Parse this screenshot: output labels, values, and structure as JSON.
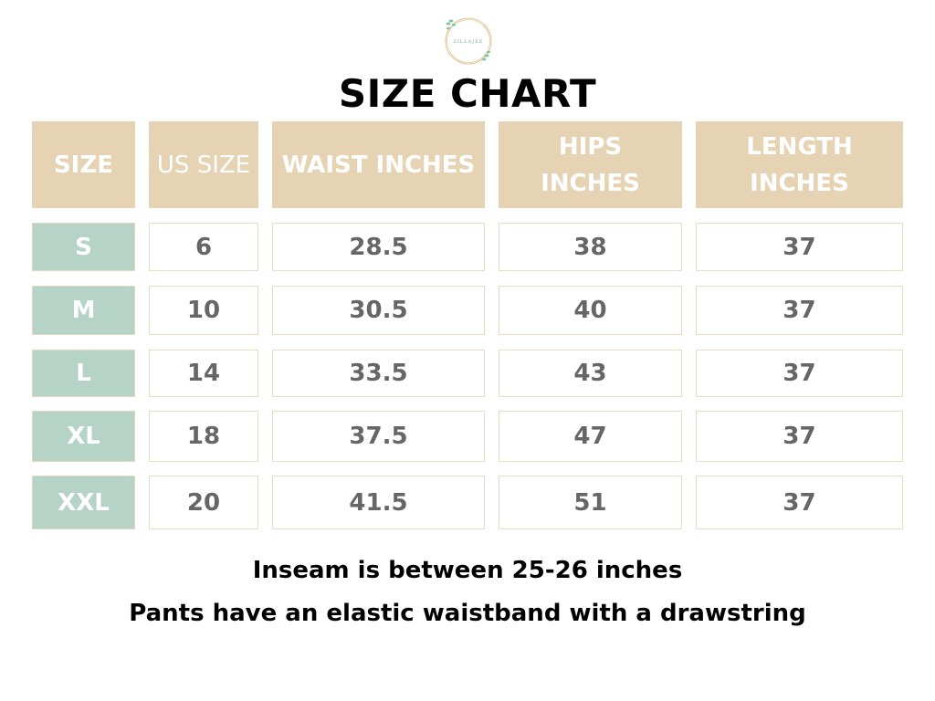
{
  "logo": {
    "text": "ZILLAJEE"
  },
  "title": "SIZE CHART",
  "colors": {
    "header": "#e5d3b3",
    "size_cell": "#b5d3c6",
    "border": "#ebdcc0",
    "value_text": "#666666"
  },
  "table": {
    "headers": [
      "SIZE",
      "US SIZE",
      "WAIST INCHES",
      "HIPS INCHES",
      "LENGTH INCHES"
    ],
    "rows": [
      [
        "S",
        "6",
        "28.5",
        "38",
        "37"
      ],
      [
        "M",
        "10",
        "30.5",
        "40",
        "37"
      ],
      [
        "L",
        "14",
        "33.5",
        "43",
        "37"
      ],
      [
        "XL",
        "18",
        "37.5",
        "47",
        "37"
      ],
      [
        "XXL",
        "20",
        "41.5",
        "51",
        "37"
      ]
    ]
  },
  "notes": [
    "Inseam is between 25-26 inches",
    "Pants have an elastic waistband with a drawstring"
  ]
}
